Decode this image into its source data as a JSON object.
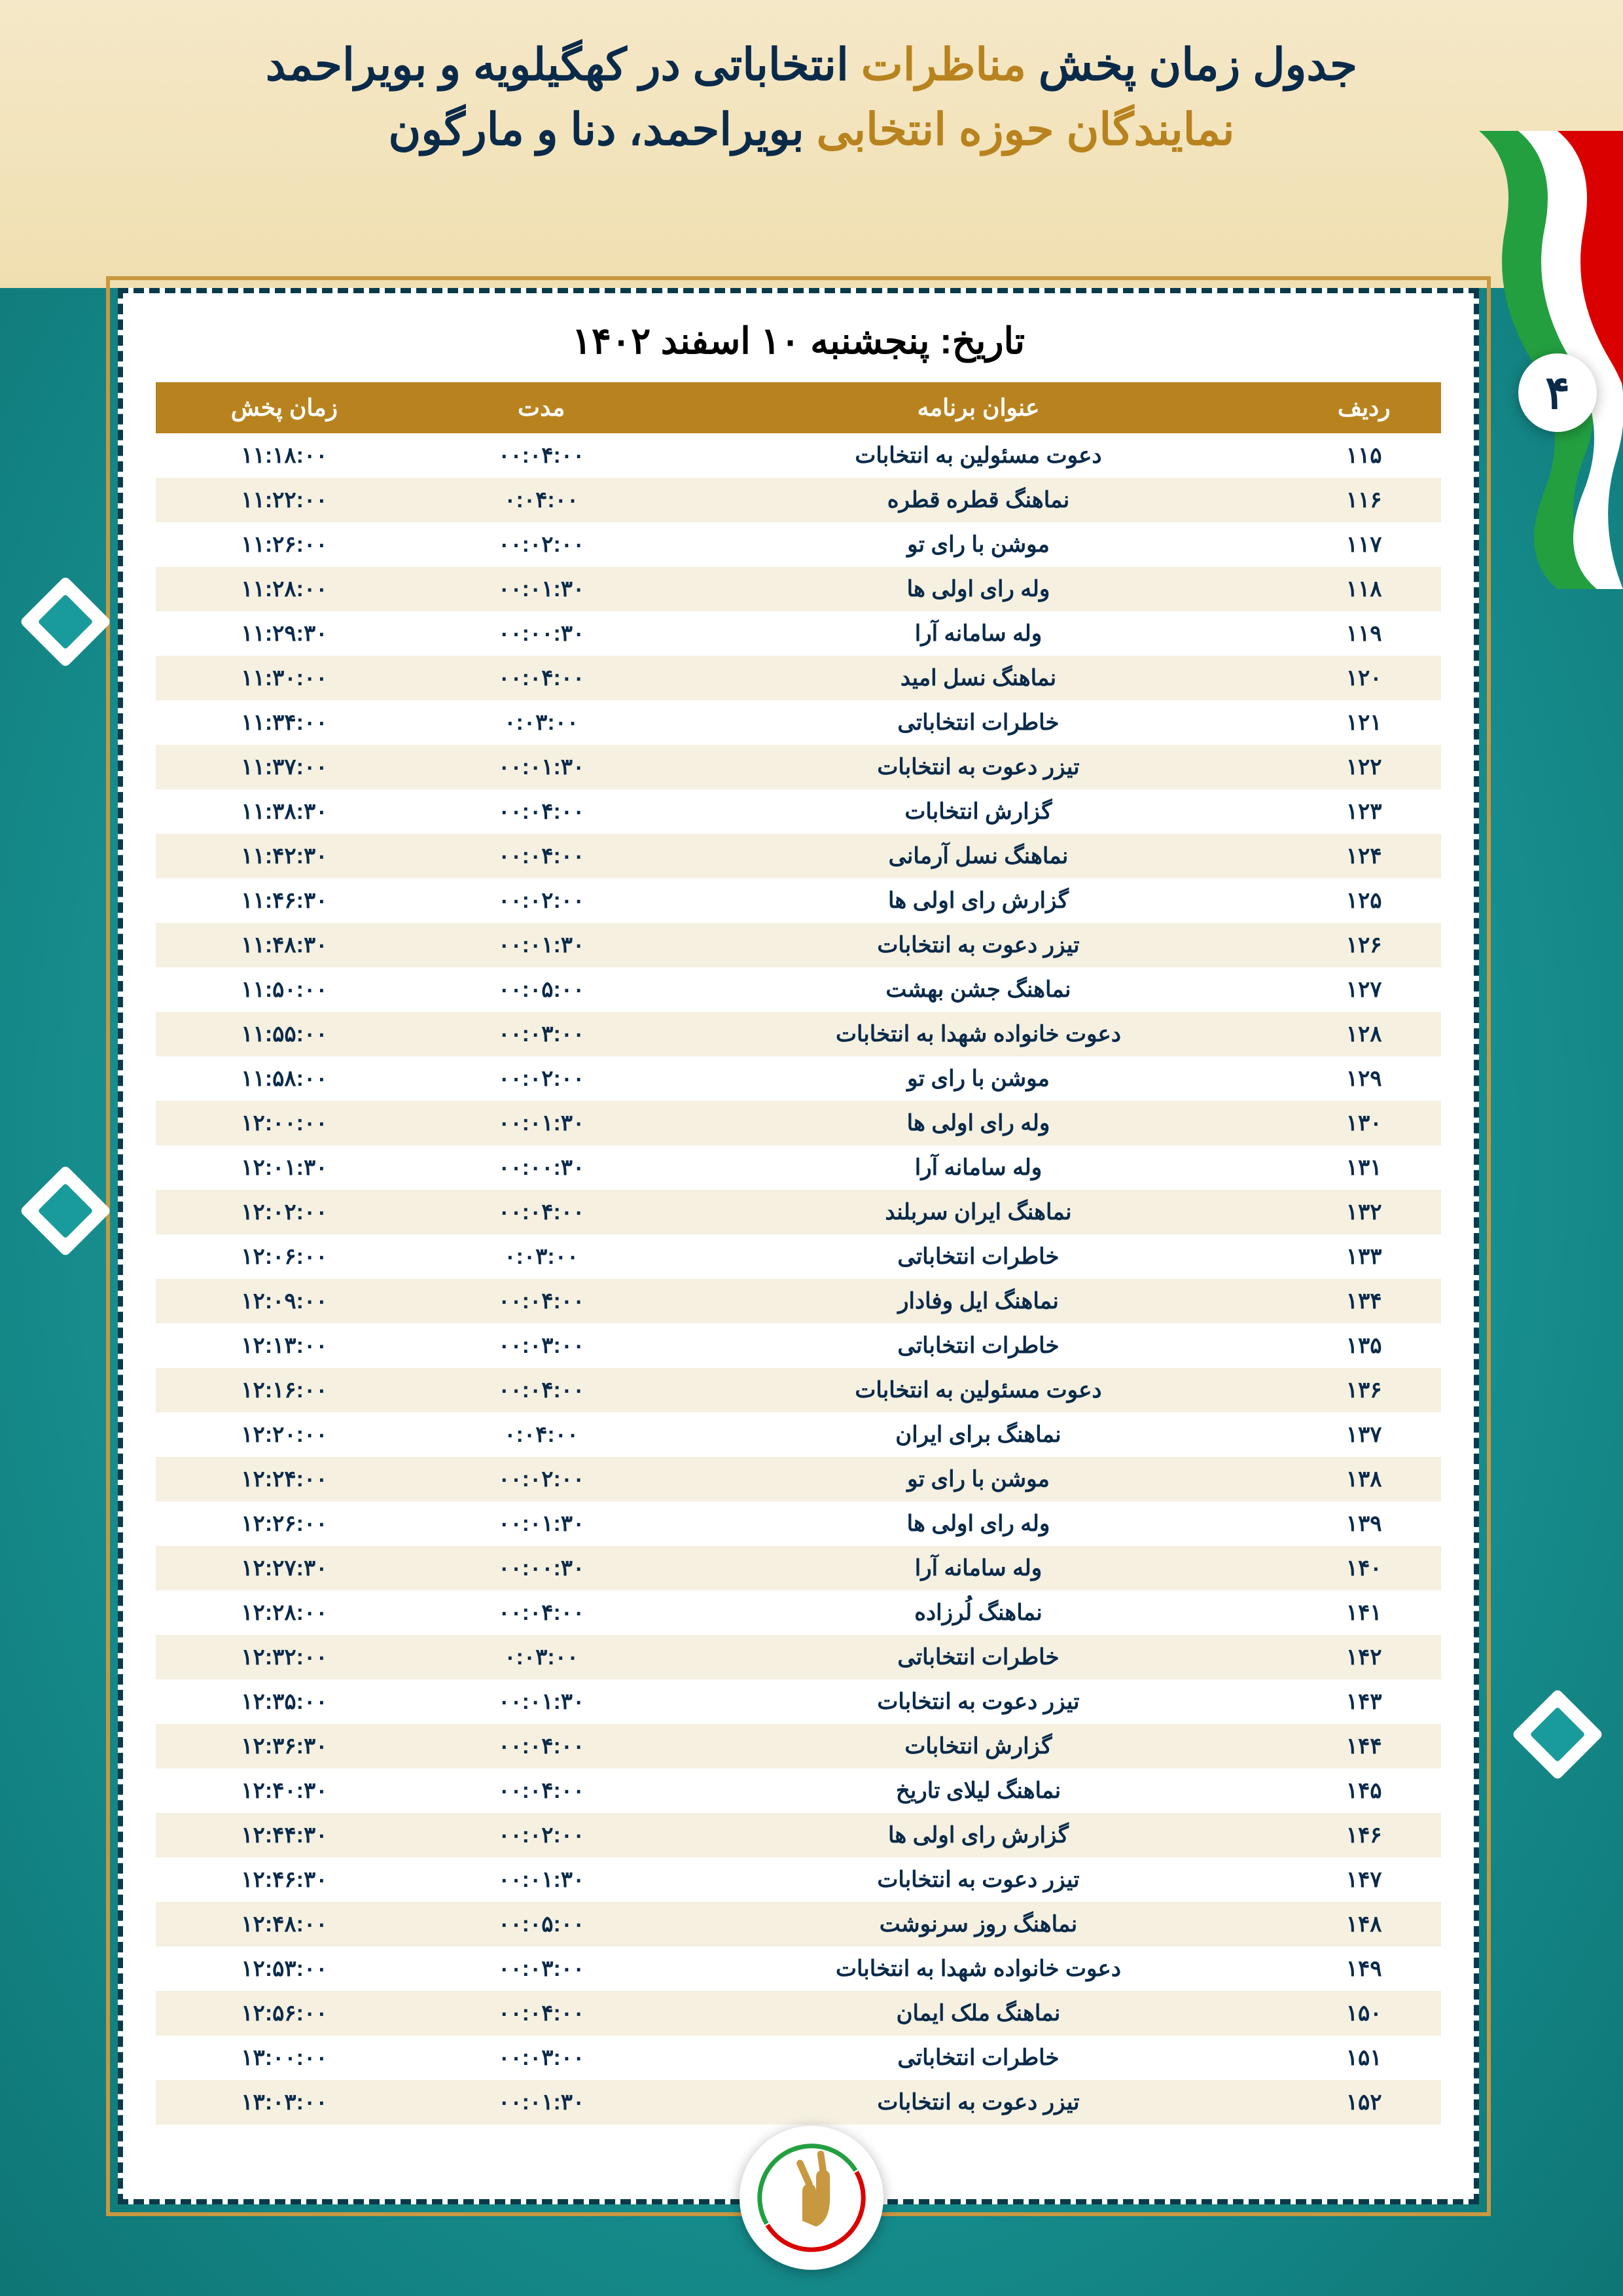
{
  "header": {
    "line1_pre": "جدول زمان پخش ",
    "line1_hl": "مناظرات",
    "line1_post": " انتخاباتی در کهگیلویه و بویراحمد",
    "line2_pre": "نمایندگان حوزه انتخابی ",
    "line2_hl": "بویراحمد، دنا و مارگون"
  },
  "page_number": "۴",
  "date_title": "تاریخ: پنجشنبه ۱۰ اسفند ۱۴۰۲",
  "columns": {
    "row": "ردیف",
    "title": "عنوان برنامه",
    "duration": "مدت",
    "time": "زمان پخش"
  },
  "rows": [
    {
      "n": "۱۱۵",
      "t": "دعوت مسئولین به انتخابات",
      "d": "۰۰:۰۴:۰۰",
      "tm": "۱۱:۱۸:۰۰"
    },
    {
      "n": "۱۱۶",
      "t": "نماهنگ قطره قطره",
      "d": "۰:۰۴:۰۰",
      "tm": "۱۱:۲۲:۰۰"
    },
    {
      "n": "۱۱۷",
      "t": "موشن با رای تو",
      "d": "۰۰:۰۲:۰۰",
      "tm": "۱۱:۲۶:۰۰"
    },
    {
      "n": "۱۱۸",
      "t": "وله رای اولی ها",
      "d": "۰۰:۰۱:۳۰",
      "tm": "۱۱:۲۸:۰۰"
    },
    {
      "n": "۱۱۹",
      "t": "وله سامانه آرا",
      "d": "۰۰:۰۰:۳۰",
      "tm": "۱۱:۲۹:۳۰"
    },
    {
      "n": "۱۲۰",
      "t": "نماهنگ نسل امید",
      "d": "۰۰:۰۴:۰۰",
      "tm": "۱۱:۳۰:۰۰"
    },
    {
      "n": "۱۲۱",
      "t": "خاطرات انتخاباتی",
      "d": "۰:۰۳:۰۰",
      "tm": "۱۱:۳۴:۰۰"
    },
    {
      "n": "۱۲۲",
      "t": "تیزر دعوت به انتخابات",
      "d": "۰۰:۰۱:۳۰",
      "tm": "۱۱:۳۷:۰۰"
    },
    {
      "n": "۱۲۳",
      "t": "گزارش انتخابات",
      "d": "۰۰:۰۴:۰۰",
      "tm": "۱۱:۳۸:۳۰"
    },
    {
      "n": "۱۲۴",
      "t": "نماهنگ نسل آرمانی",
      "d": "۰۰:۰۴:۰۰",
      "tm": "۱۱:۴۲:۳۰"
    },
    {
      "n": "۱۲۵",
      "t": "گزارش رای اولی ها",
      "d": "۰۰:۰۲:۰۰",
      "tm": "۱۱:۴۶:۳۰"
    },
    {
      "n": "۱۲۶",
      "t": "تیزر دعوت به انتخابات",
      "d": "۰۰:۰۱:۳۰",
      "tm": "۱۱:۴۸:۳۰"
    },
    {
      "n": "۱۲۷",
      "t": "نماهنگ جشن بهشت",
      "d": "۰۰:۰۵:۰۰",
      "tm": "۱۱:۵۰:۰۰"
    },
    {
      "n": "۱۲۸",
      "t": "دعوت خانواده شهدا به انتخابات",
      "d": "۰۰:۰۳:۰۰",
      "tm": "۱۱:۵۵:۰۰"
    },
    {
      "n": "۱۲۹",
      "t": "موشن با رای تو",
      "d": "۰۰:۰۲:۰۰",
      "tm": "۱۱:۵۸:۰۰"
    },
    {
      "n": "۱۳۰",
      "t": "وله رای اولی ها",
      "d": "۰۰:۰۱:۳۰",
      "tm": "۱۲:۰۰:۰۰"
    },
    {
      "n": "۱۳۱",
      "t": "وله سامانه آرا",
      "d": "۰۰:۰۰:۳۰",
      "tm": "۱۲:۰۱:۳۰"
    },
    {
      "n": "۱۳۲",
      "t": "نماهنگ ایران سربلند",
      "d": "۰۰:۰۴:۰۰",
      "tm": "۱۲:۰۲:۰۰"
    },
    {
      "n": "۱۳۳",
      "t": "خاطرات انتخاباتی",
      "d": "۰:۰۳:۰۰",
      "tm": "۱۲:۰۶:۰۰"
    },
    {
      "n": "۱۳۴",
      "t": "نماهنگ ایل وفادار",
      "d": "۰۰:۰۴:۰۰",
      "tm": "۱۲:۰۹:۰۰"
    },
    {
      "n": "۱۳۵",
      "t": "خاطرات انتخاباتی",
      "d": "۰۰:۰۳:۰۰",
      "tm": "۱۲:۱۳:۰۰"
    },
    {
      "n": "۱۳۶",
      "t": "دعوت مسئولین به انتخابات",
      "d": "۰۰:۰۴:۰۰",
      "tm": "۱۲:۱۶:۰۰"
    },
    {
      "n": "۱۳۷",
      "t": "نماهنگ برای ایران",
      "d": "۰:۰۴:۰۰",
      "tm": "۱۲:۲۰:۰۰"
    },
    {
      "n": "۱۳۸",
      "t": "موشن با رای تو",
      "d": "۰۰:۰۲:۰۰",
      "tm": "۱۲:۲۴:۰۰"
    },
    {
      "n": "۱۳۹",
      "t": "وله رای اولی ها",
      "d": "۰۰:۰۱:۳۰",
      "tm": "۱۲:۲۶:۰۰"
    },
    {
      "n": "۱۴۰",
      "t": "وله سامانه آرا",
      "d": "۰۰:۰۰:۳۰",
      "tm": "۱۲:۲۷:۳۰"
    },
    {
      "n": "۱۴۱",
      "t": "نماهنگ لُرزاده",
      "d": "۰۰:۰۴:۰۰",
      "tm": "۱۲:۲۸:۰۰"
    },
    {
      "n": "۱۴۲",
      "t": "خاطرات انتخاباتی",
      "d": "۰:۰۳:۰۰",
      "tm": "۱۲:۳۲:۰۰"
    },
    {
      "n": "۱۴۳",
      "t": "تیزر دعوت به انتخابات",
      "d": "۰۰:۰۱:۳۰",
      "tm": "۱۲:۳۵:۰۰"
    },
    {
      "n": "۱۴۴",
      "t": "گزارش انتخابات",
      "d": "۰۰:۰۴:۰۰",
      "tm": "۱۲:۳۶:۳۰"
    },
    {
      "n": "۱۴۵",
      "t": "نماهنگ لیلای تاریخ",
      "d": "۰۰:۰۴:۰۰",
      "tm": "۱۲:۴۰:۳۰"
    },
    {
      "n": "۱۴۶",
      "t": "گزارش رای اولی ها",
      "d": "۰۰:۰۲:۰۰",
      "tm": "۱۲:۴۴:۳۰"
    },
    {
      "n": "۱۴۷",
      "t": "تیزر دعوت به انتخابات",
      "d": "۰۰:۰۱:۳۰",
      "tm": "۱۲:۴۶:۳۰"
    },
    {
      "n": "۱۴۸",
      "t": "نماهنگ روز سرنوشت",
      "d": "۰۰:۰۵:۰۰",
      "tm": "۱۲:۴۸:۰۰"
    },
    {
      "n": "۱۴۹",
      "t": "دعوت خانواده شهدا به انتخابات",
      "d": "۰۰:۰۳:۰۰",
      "tm": "۱۲:۵۳:۰۰"
    },
    {
      "n": "۱۵۰",
      "t": "نماهنگ ملک ایمان",
      "d": "۰۰:۰۴:۰۰",
      "tm": "۱۲:۵۶:۰۰"
    },
    {
      "n": "۱۵۱",
      "t": "خاطرات انتخاباتی",
      "d": "۰۰:۰۳:۰۰",
      "tm": "۱۳:۰۰:۰۰"
    },
    {
      "n": "۱۵۲",
      "t": "تیزر دعوت به انتخابات",
      "d": "۰۰:۰۱:۳۰",
      "tm": "۱۳:۰۳:۰۰"
    }
  ],
  "styling": {
    "bg_color": "#1a9b9b",
    "header_bg": "#f5e8c8",
    "accent_gold": "#b8831f",
    "accent_navy": "#0a2a4a",
    "row_alt_bg": "#f5f0e0",
    "title_fontsize": 68,
    "date_fontsize": 56,
    "th_fontsize": 36,
    "td_fontsize": 34,
    "flag_colors": {
      "green": "#239f40",
      "white": "#ffffff",
      "red": "#da0000"
    }
  }
}
